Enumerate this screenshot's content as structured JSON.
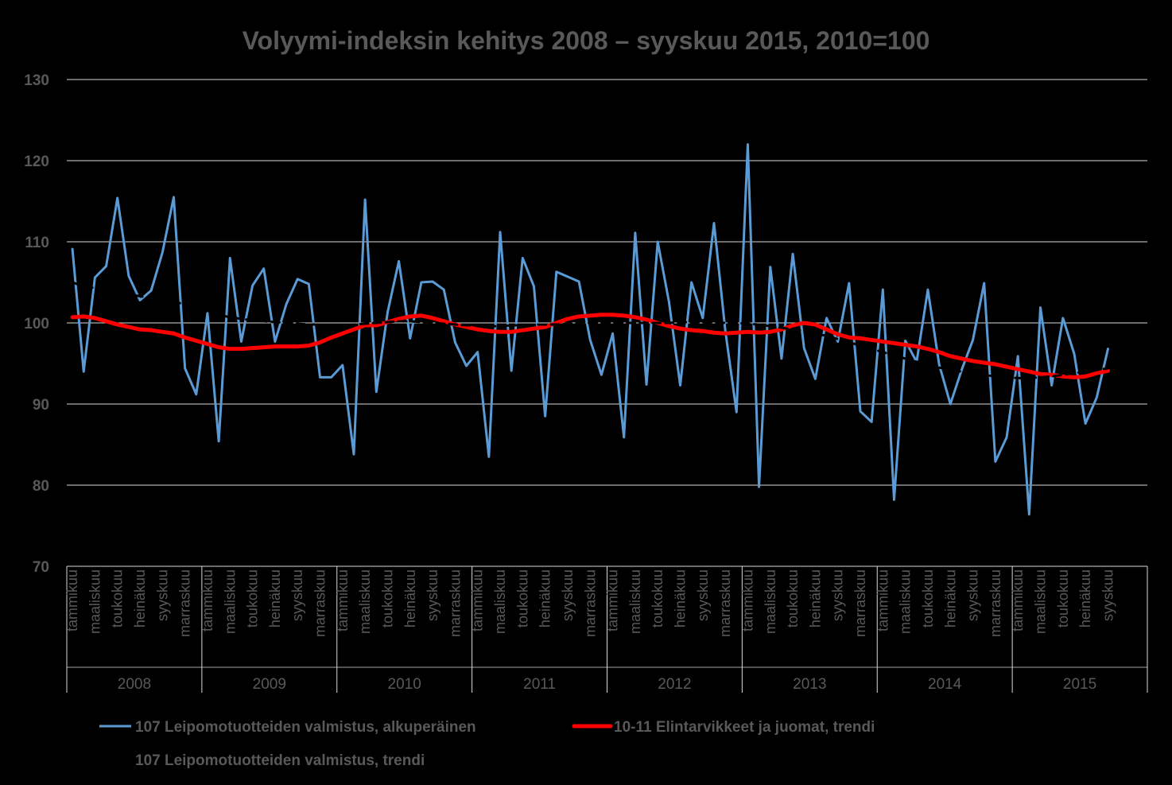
{
  "chart_data": {
    "type": "line",
    "title": "Volyymi-indeksin kehitys 2008 – syyskuu 2015, 2010=100",
    "xlabel": "",
    "ylabel": "",
    "ylim": [
      70,
      130
    ],
    "yticks": [
      "70",
      "80",
      "90",
      "100",
      "110",
      "120",
      "130"
    ],
    "grid": true,
    "legend_position": "bottom",
    "month_tick_labels": [
      "tammikuu",
      "maaliskuu",
      "toukokuu",
      "heinäkuu",
      "syyskuu",
      "marraskuu"
    ],
    "years": [
      "2008",
      "2009",
      "2010",
      "2011",
      "2012",
      "2013",
      "2014",
      "2015"
    ],
    "colors": {
      "original": "#5B9BD5",
      "food_trend": "#FF0000",
      "bakery_trend": "#000000",
      "grid": "#D9D9D9",
      "text": "#595959"
    },
    "series": [
      {
        "name": "107 Leipomotuotteiden valmistus, alkuperäinen",
        "values": [
          109.1,
          94.0,
          105.6,
          107.0,
          115.4,
          105.8,
          102.8,
          104.0,
          108.7,
          115.5,
          94.4,
          91.2,
          101.2,
          85.4,
          108.0,
          97.7,
          104.6,
          106.7,
          97.7,
          102.3,
          105.4,
          104.8,
          93.3,
          93.3,
          94.8,
          83.8,
          115.2,
          91.5,
          101.3,
          107.6,
          98.1,
          105.0,
          105.1,
          104.1,
          97.6,
          94.7,
          96.4,
          83.5,
          111.2,
          94.1,
          108.0,
          104.5,
          88.5,
          106.3,
          105.7,
          105.1,
          97.9,
          93.6,
          98.7,
          85.9,
          111.1,
          92.4,
          110.0,
          102.6,
          92.3,
          105.0,
          100.6,
          112.3,
          99.1,
          89.0,
          122.0,
          79.8,
          106.9,
          95.6,
          108.5,
          96.9,
          93.1,
          100.6,
          97.7,
          104.9,
          89.1,
          87.8,
          104.1,
          78.2,
          97.8,
          95.2,
          104.1,
          94.9,
          90.0,
          94.2,
          97.9,
          104.9,
          82.9,
          85.9,
          95.9,
          76.4,
          101.9,
          92.3,
          100.6,
          96.2,
          87.6,
          90.8,
          96.8
        ]
      },
      {
        "name": "10-11 Elintarvikkeet ja juomat, trendi",
        "values": [
          100.7,
          100.8,
          100.6,
          100.2,
          99.8,
          99.5,
          99.2,
          99.1,
          98.9,
          98.7,
          98.2,
          97.8,
          97.4,
          97.0,
          96.8,
          96.8,
          96.9,
          97.0,
          97.1,
          97.1,
          97.1,
          97.2,
          97.6,
          98.2,
          98.7,
          99.2,
          99.7,
          99.7,
          100.1,
          100.5,
          100.8,
          100.9,
          100.6,
          100.2,
          99.8,
          99.5,
          99.2,
          99.0,
          98.9,
          98.9,
          99.1,
          99.3,
          99.5,
          100.0,
          100.5,
          100.8,
          100.9,
          101.0,
          101.0,
          100.9,
          100.7,
          100.4,
          100.0,
          99.6,
          99.3,
          99.1,
          99.0,
          98.8,
          98.7,
          98.8,
          98.9,
          98.8,
          98.9,
          99.2,
          99.7,
          100.0,
          99.8,
          99.2,
          98.6,
          98.2,
          98.1,
          97.9,
          97.7,
          97.5,
          97.3,
          97.1,
          96.8,
          96.4,
          95.9,
          95.6,
          95.3,
          95.1,
          94.9,
          94.6,
          94.3,
          94.0,
          93.7,
          93.6,
          93.4,
          93.3,
          93.4,
          93.8,
          94.1
        ]
      },
      {
        "name": "107 Leipomotuotteiden  valmistus, trendi",
        "values": [
          105.0,
          104.5,
          104.3,
          104.0,
          103.8,
          103.5,
          103.3,
          103.0,
          102.8,
          102.6,
          102.3,
          102.0,
          101.5,
          101.0,
          100.7,
          100.5,
          100.3,
          100.2,
          100.1,
          100.0,
          99.9,
          99.8,
          99.8,
          99.7,
          99.7,
          99.8,
          99.9,
          100.0,
          100.1,
          100.2,
          100.2,
          100.1,
          100.0,
          99.9,
          99.8,
          99.7,
          99.7,
          99.6,
          99.6,
          99.7,
          99.7,
          99.8,
          99.8,
          99.8,
          99.9,
          99.9,
          100.0,
          100.0,
          100.0,
          100.0,
          100.0,
          100.0,
          100.0,
          100.0,
          100.1,
          100.1,
          100.1,
          100.1,
          100.0,
          100.0,
          99.9,
          99.8,
          99.6,
          99.4,
          99.2,
          99.0,
          98.7,
          98.4,
          98.0,
          97.6,
          97.2,
          96.8,
          96.4,
          96.0,
          95.6,
          95.2,
          94.8,
          94.5,
          94.2,
          94.0,
          93.8,
          93.6,
          93.4,
          93.3,
          93.2,
          93.2,
          93.3,
          93.4,
          93.6,
          93.8,
          94.0,
          94.2,
          94.4
        ]
      }
    ]
  }
}
